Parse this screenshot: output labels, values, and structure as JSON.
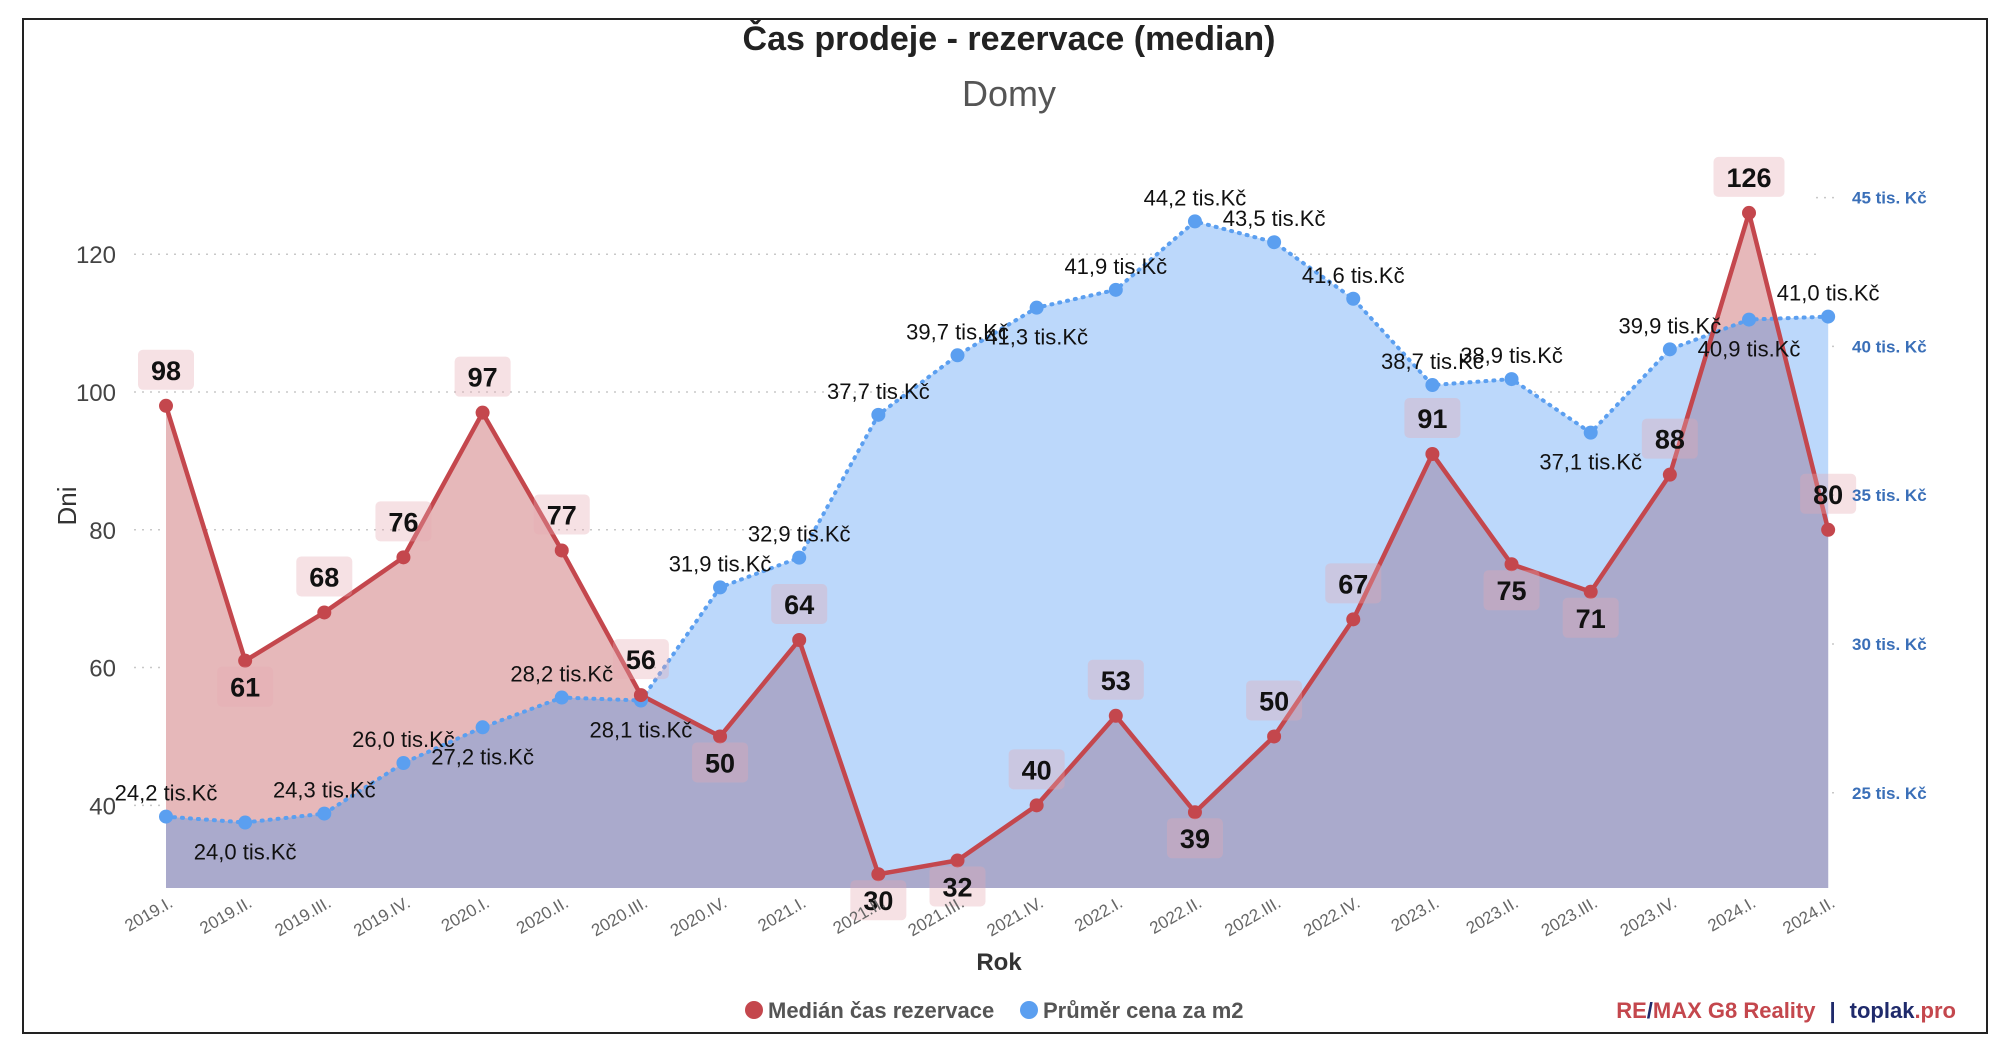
{
  "chart_data": {
    "type": "line",
    "title": "Čas prodeje - rezervace (median)",
    "subtitle": "Domy",
    "xlabel": "Rok",
    "ylabel": "Dni",
    "y_ticks": [
      "40",
      "60",
      "80",
      "100",
      "120"
    ],
    "y_range": [
      28,
      136
    ],
    "y2_ticks": [
      "25 tis. Kč",
      "30 tis. Kč",
      "35 tis. Kč",
      "40 tis. Kč",
      "45 tis. Kč"
    ],
    "y2_range": [
      21.8,
      46.8
    ],
    "categories": [
      "2019.I.",
      "2019.II.",
      "2019.III.",
      "2019.IV.",
      "2020.I.",
      "2020.II.",
      "2020.III.",
      "2020.IV.",
      "2021.I.",
      "2021.II.",
      "2021.III.",
      "2021.IV.",
      "2022.I.",
      "2022.II.",
      "2022.III.",
      "2022.IV.",
      "2023.I.",
      "2023.II.",
      "2023.III.",
      "2023.IV.",
      "2024.I.",
      "2024.II."
    ],
    "series": [
      {
        "name": "Medián čas rezervace",
        "color": "#c4474d",
        "axis": "left",
        "values": [
          98,
          61,
          68,
          76,
          97,
          77,
          56,
          50,
          64,
          30,
          32,
          40,
          53,
          39,
          50,
          67,
          91,
          75,
          71,
          88,
          126,
          80
        ],
        "labels": [
          "98",
          "61",
          "68",
          "76",
          "97",
          "77",
          "56",
          "50",
          "64",
          "30",
          "32",
          "40",
          "53",
          "39",
          "50",
          "67",
          "91",
          "75",
          "71",
          "88",
          "126",
          "80"
        ]
      },
      {
        "name": "Průměr cena za m2",
        "color": "#5b9ff0",
        "axis": "right",
        "values": [
          24.2,
          24.0,
          24.3,
          26.0,
          27.2,
          28.2,
          28.1,
          31.9,
          32.9,
          37.7,
          39.7,
          41.3,
          41.9,
          44.2,
          43.5,
          41.6,
          38.7,
          38.9,
          37.1,
          39.9,
          40.9,
          41.0
        ],
        "labels": [
          "24,2 tis.Kč",
          "24,0 tis.Kč",
          "24,3 tis.Kč",
          "26,0 tis.Kč",
          "27,2 tis.Kč",
          "28,2 tis.Kč",
          "28,1 tis.Kč",
          "31,9 tis.Kč",
          "32,9 tis.Kč",
          "37,7 tis.Kč",
          "39,7 tis.Kč",
          "41,3 tis.Kč",
          "41,9 tis.Kč",
          "44,2 tis.Kč",
          "43,5 tis.Kč",
          "41,6 tis.Kč",
          "38,7 tis.Kč",
          "38,9 tis.Kč",
          "37,1 tis.Kč",
          "39,9 tis.Kč",
          "40,9 tis.Kč",
          "41,0 tis.Kč"
        ]
      }
    ],
    "legend_position": "bottom-center",
    "grid": "horizontal-dotted"
  },
  "credit": {
    "brand_re": "RE",
    "brand_slash": "/",
    "brand_rest": "MAX G8 Reality",
    "separator": "|",
    "site_name": "toplak",
    "site_tld": ".pro"
  },
  "colors": {
    "red": "#c4474d",
    "blue": "#5b9ff0",
    "overlap_fill": "#aaaacc",
    "red_fill": "#e6b8ba",
    "blue_fill": "#bcd8fb",
    "axis_text": "#444444",
    "right_axis_text": "#3a6fb8",
    "brand_navy": "#1f2a6b"
  }
}
